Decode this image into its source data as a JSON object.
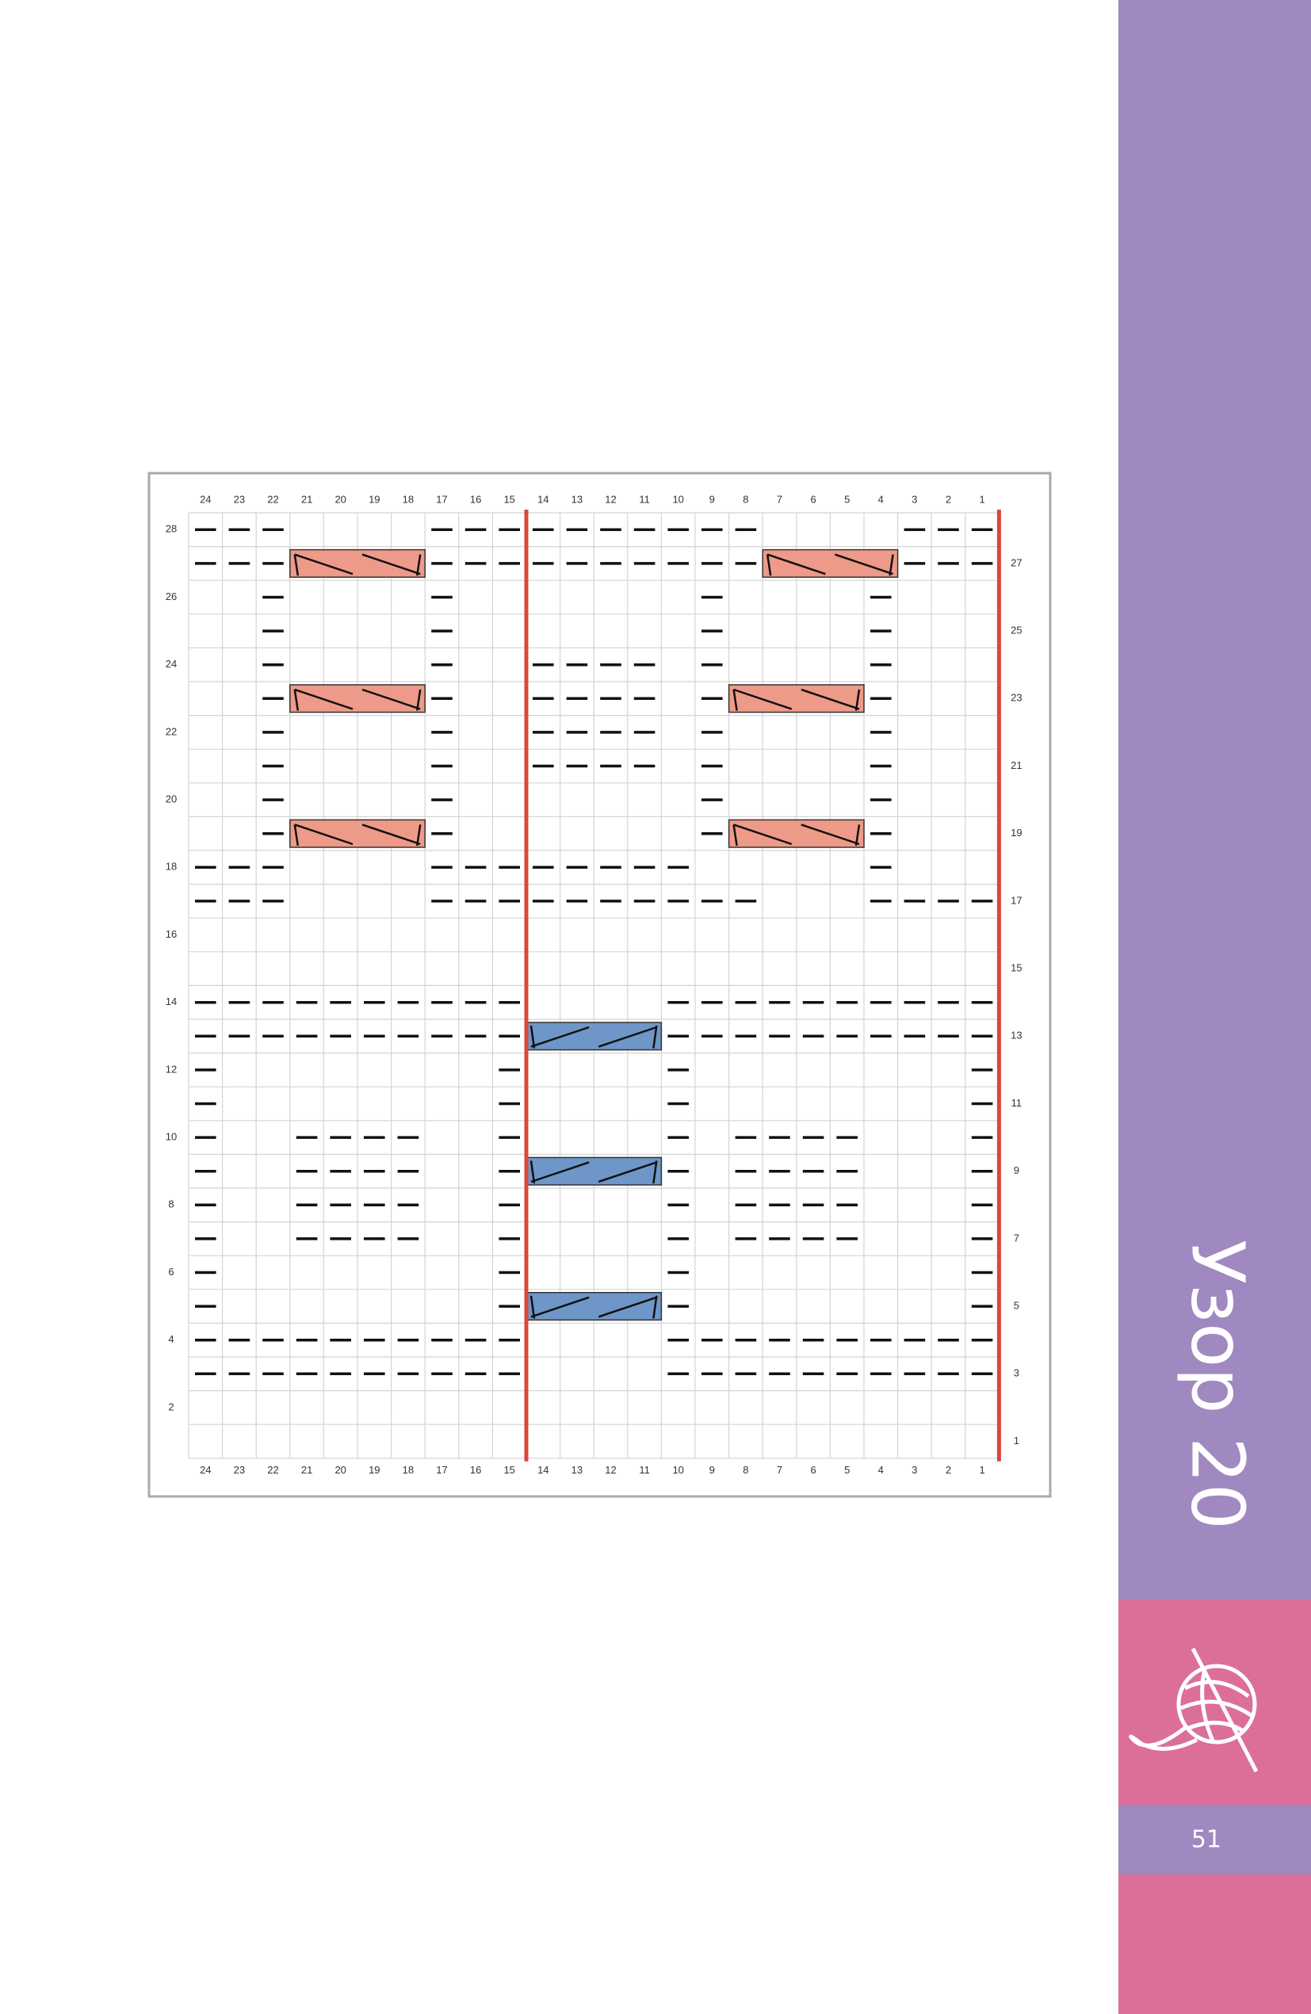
{
  "title": "Узор 20",
  "page_number": "51",
  "chart": {
    "columns": [
      24,
      23,
      22,
      21,
      20,
      19,
      18,
      17,
      16,
      15,
      14,
      13,
      12,
      11,
      10,
      9,
      8,
      7,
      6,
      5,
      4,
      3,
      2,
      1
    ],
    "rows_left": [
      28,
      26,
      24,
      22,
      20,
      18,
      16,
      14,
      12,
      10,
      8,
      6,
      4,
      2
    ],
    "rows_right": [
      27,
      25,
      23,
      21,
      19,
      17,
      15,
      13,
      11,
      9,
      7,
      5,
      3,
      1
    ]
  }
}
